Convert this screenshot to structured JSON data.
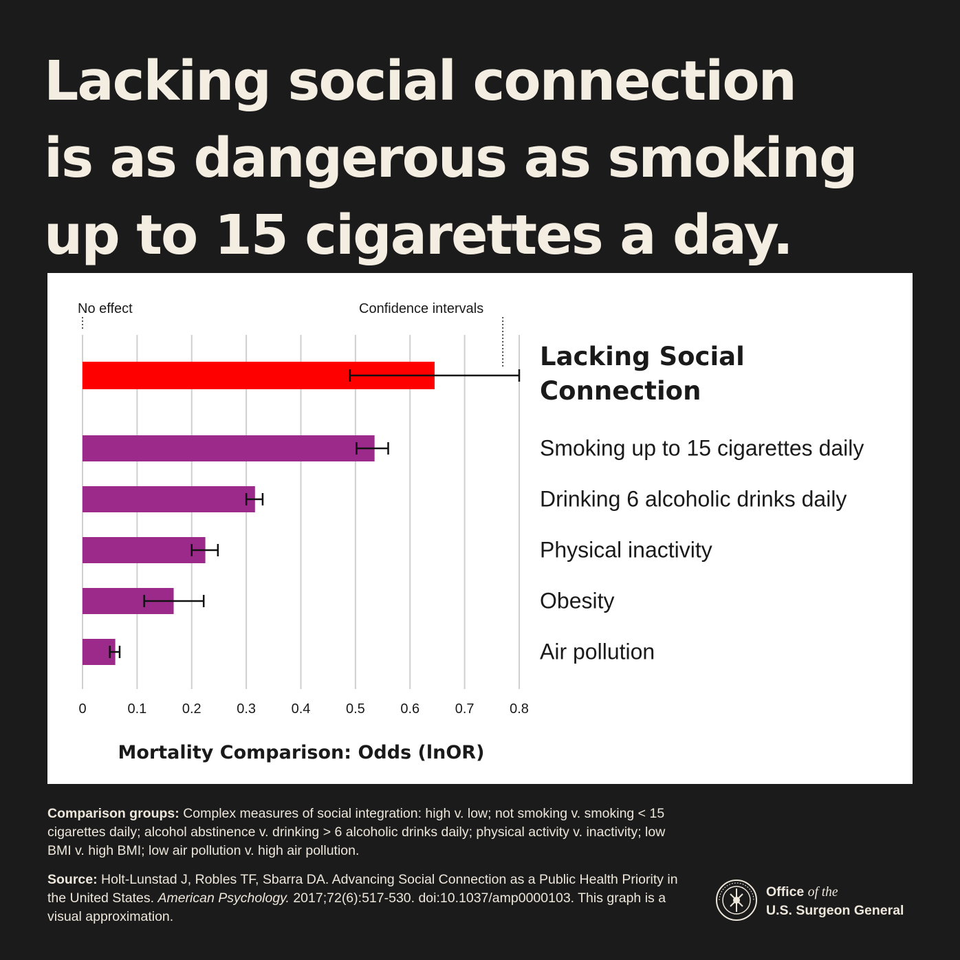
{
  "headline": [
    "Lacking social connection",
    "is as dangerous as smoking",
    "up to 15 cigarettes a day."
  ],
  "chart_data": {
    "type": "bar",
    "orientation": "horizontal",
    "xlabel": "Mortality Comparison: Odds (lnOR)",
    "xlim": [
      0,
      0.8
    ],
    "xticks": [
      "0",
      "0.1",
      "0.2",
      "0.3",
      "0.4",
      "0.5",
      "0.6",
      "0.7",
      "0.8"
    ],
    "grid": true,
    "annotations": {
      "no_effect": "No effect",
      "confidence_intervals": "Confidence intervals"
    },
    "categories": [
      "Lacking Social Connection",
      "Smoking up to 15 cigarettes daily",
      "Drinking 6 alcoholic drinks daily",
      "Physical inactivity",
      "Obesity",
      "Air pollution"
    ],
    "values": [
      0.645,
      0.535,
      0.316,
      0.225,
      0.167,
      0.06
    ],
    "ci_low": [
      0.49,
      0.502,
      0.3,
      0.2,
      0.113,
      0.05
    ],
    "ci_high": [
      0.8,
      0.56,
      0.33,
      0.248,
      0.222,
      0.068
    ],
    "colors": [
      "#ff0000",
      "#9c2a8a",
      "#9c2a8a",
      "#9c2a8a",
      "#9c2a8a",
      "#9c2a8a"
    ]
  },
  "footnotes": {
    "comparison_label": "Comparison groups:",
    "comparison_text": "Complex measures of social integration: high v. low; not smoking v. smoking < 15 cigarettes daily; alcohol abstinence v. drinking > 6 alcoholic drinks daily; physical activity v. inactivity; low BMI v. high BMI; low air pollution v. high air pollution.",
    "source_label": "Source:",
    "source_text_1": "Holt-Lunstad J, Robles TF, Sbarra DA. Advancing Social Connection as a Public Health Priority in the United States.",
    "source_journal": "American Psychology.",
    "source_text_2": "2017;72(6):517-530. doi:10.1037/amp0000103. This graph is a visual approximation."
  },
  "logo": {
    "office": "Office",
    "of_the": "of the",
    "name": "U.S. Surgeon General",
    "seal_text": "PUBLIC HEALTH SERVICE 1798"
  }
}
